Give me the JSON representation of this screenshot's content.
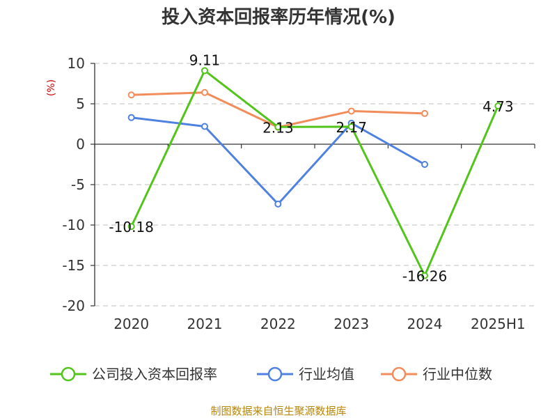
{
  "chart_data": {
    "type": "line",
    "title": "投入资本回报率历年情况(%)",
    "unit_label": "(%)",
    "categories": [
      "2020",
      "2021",
      "2022",
      "2023",
      "2024",
      "2025H1"
    ],
    "ylim": [
      -20,
      10
    ],
    "yticks": [
      10,
      5,
      0,
      -5,
      -10,
      -15,
      -20
    ],
    "grid": true,
    "legend_position": "bottom",
    "series": [
      {
        "name": "公司投入资本回报率",
        "color": "#52c41a",
        "values": [
          -10.18,
          9.11,
          2.13,
          2.17,
          -16.26,
          4.73
        ],
        "labels": [
          "-10.18",
          "9.11",
          "2.13",
          "2.17",
          "-16.26",
          "4.73"
        ]
      },
      {
        "name": "行业均值",
        "color": "#4f81e0",
        "values": [
          3.3,
          2.2,
          -7.4,
          2.6,
          -2.5,
          null
        ]
      },
      {
        "name": "行业中位数",
        "color": "#f28c5a",
        "values": [
          6.1,
          6.4,
          2.1,
          4.1,
          3.8,
          null
        ]
      }
    ]
  },
  "source": "制图数据来自恒生聚源数据库"
}
